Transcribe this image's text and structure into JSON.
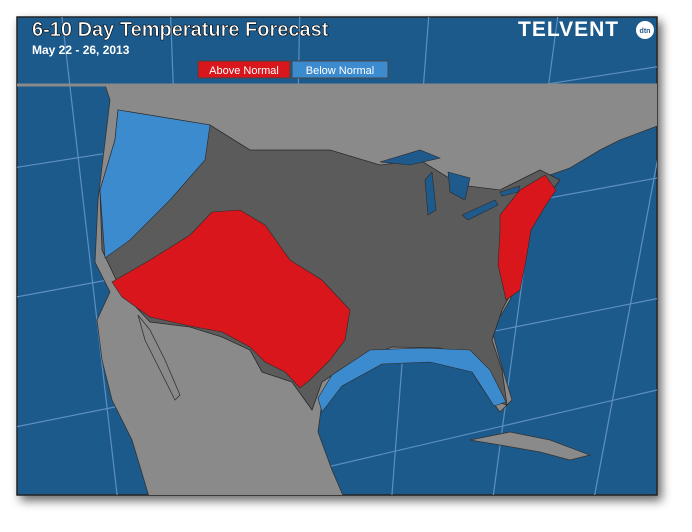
{
  "header": {
    "title": "6-10 Day Temperature Forecast",
    "subtitle": "May 22 - 26, 2013",
    "logo": "TELVENT",
    "logo_badge": "dtn"
  },
  "legend": {
    "items": [
      "Above Normal",
      "Below Normal"
    ]
  }
}
